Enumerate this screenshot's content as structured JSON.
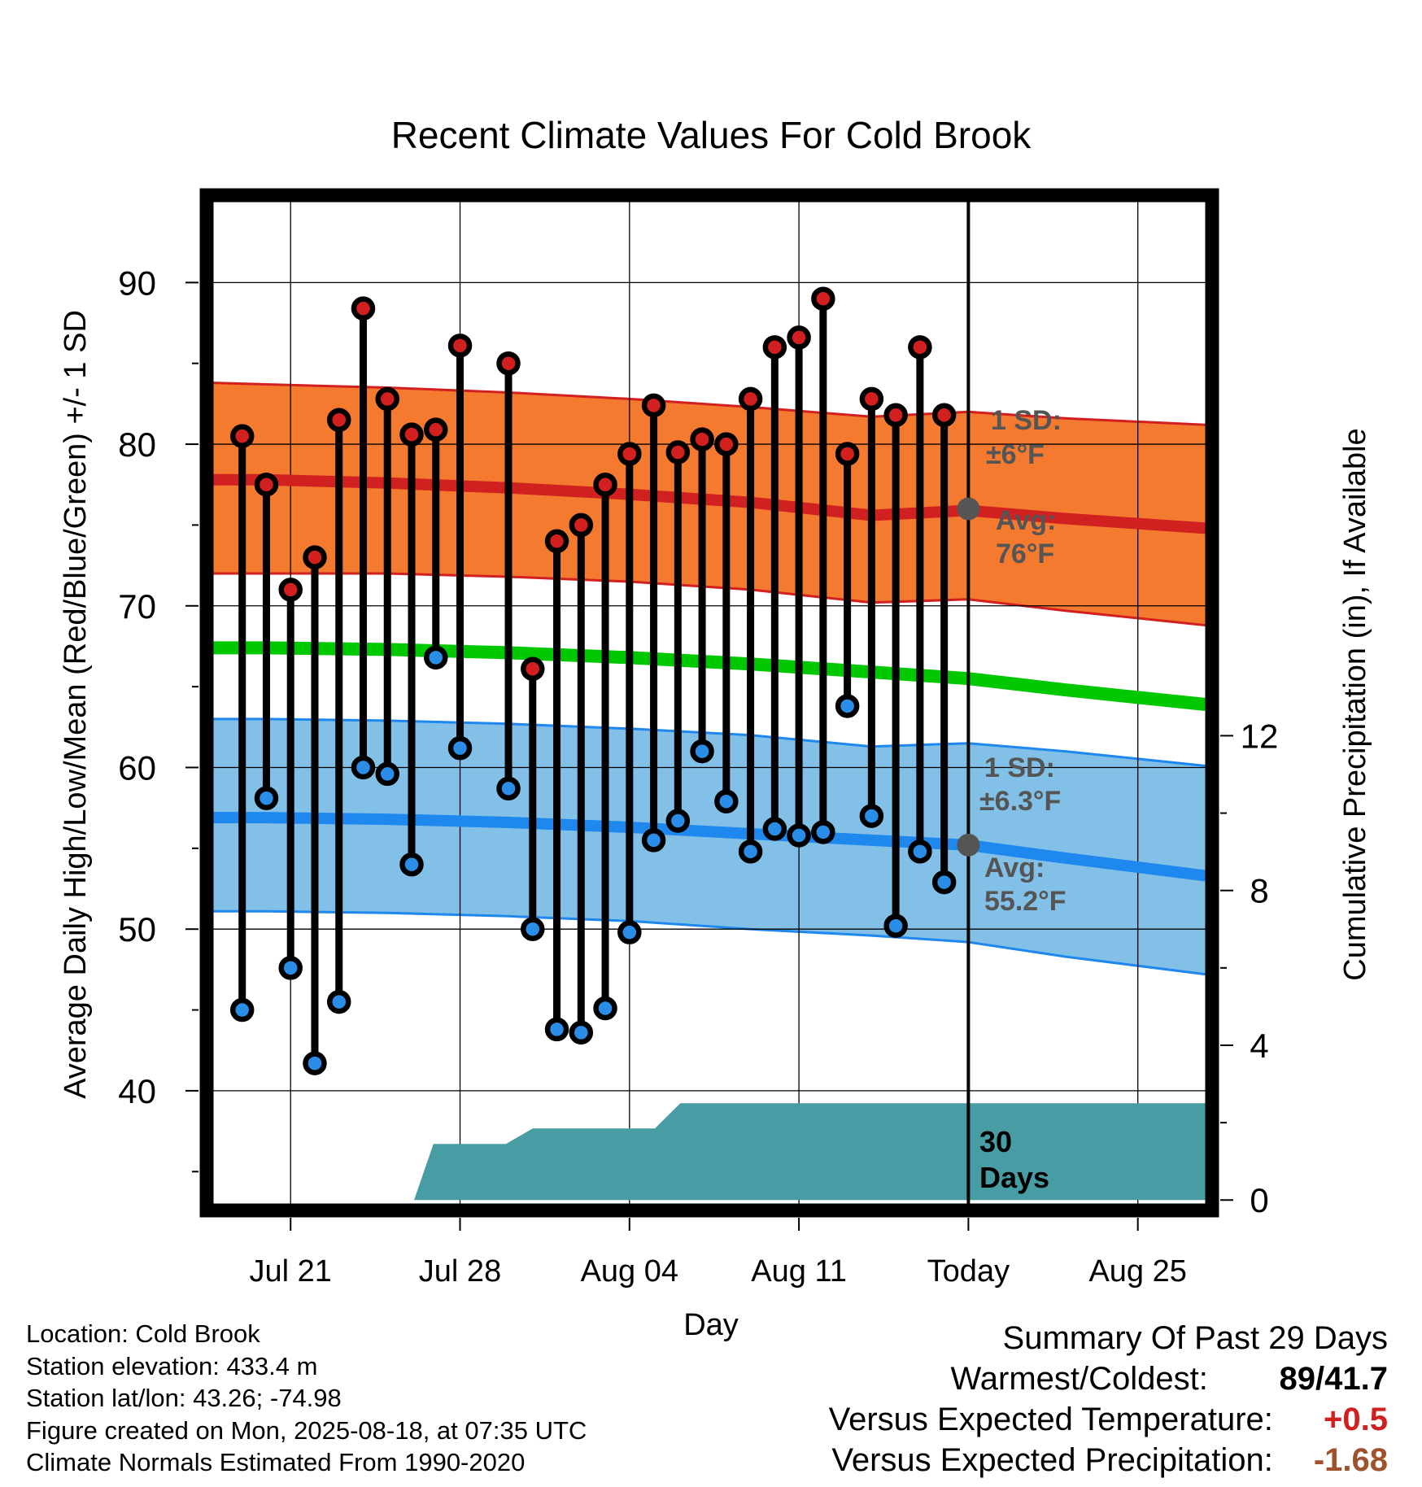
{
  "title": "Recent Climate Values For Cold Brook",
  "colors": {
    "high_band": "#f47a30",
    "high_band_edge": "#d21f20",
    "high_avg": "#d02020",
    "low_band": "#83c0e8",
    "low_band_edge": "#1e88ee",
    "low_avg": "#1e88ee",
    "mean_line": "#00c800",
    "precip_fill": "#489ca4",
    "high_marker": "#d21f20",
    "low_marker": "#2a8ee8",
    "annotation": "#555555",
    "summary_temp": "#d02020",
    "summary_precip": "#a0522d"
  },
  "chart_data": {
    "type": "line",
    "title": "Recent Climate Values For Cold Brook",
    "xlabel": "Day",
    "ylabel": "Average Daily High/Low/Mean (Red/Blue/Green) +/- 1 SD",
    "y2label": "Cumulative Precipitation (in), If Available",
    "x_tick_labels": [
      "Jul 21",
      "Jul 28",
      "Aug 04",
      "Aug 11",
      "Today",
      "Aug 25"
    ],
    "x_tick_days": [
      21,
      28,
      35,
      42,
      49,
      56
    ],
    "x_range": [
      17.8,
      58.8
    ],
    "ylim": [
      33,
      95
    ],
    "yticks": [
      40,
      50,
      60,
      70,
      80,
      90
    ],
    "y2lim": [
      -0.1,
      25.8
    ],
    "y2ticks": [
      0,
      4,
      8,
      12
    ],
    "today_day": 49,
    "days": [
      19,
      20,
      21,
      22,
      23,
      24,
      25,
      26,
      27,
      28,
      29,
      30,
      31,
      32,
      33,
      34,
      35,
      36,
      37,
      38,
      39,
      40,
      41,
      42,
      43,
      44,
      45,
      46,
      47,
      48
    ],
    "observed_high": [
      80.5,
      77.5,
      71,
      73,
      81.5,
      88.4,
      82.8,
      80.6,
      80.9,
      86.1,
      null,
      85,
      66.1,
      74,
      75,
      77.5,
      79.4,
      82.4,
      79.5,
      80.3,
      80,
      82.8,
      86,
      86.6,
      89,
      79.4,
      82.8,
      81.8,
      86,
      81.8
    ],
    "observed_low": [
      45,
      58.1,
      47.6,
      41.7,
      45.5,
      60,
      59.6,
      54,
      66.8,
      61.2,
      null,
      58.7,
      50,
      43.8,
      43.6,
      45.1,
      49.8,
      55.5,
      56.7,
      61,
      57.9,
      54.8,
      56.2,
      55.8,
      56,
      63.8,
      57,
      50.2,
      54.8,
      52.9
    ],
    "normal_days": [
      17.8,
      20,
      25,
      30,
      35,
      40,
      45,
      49,
      53,
      58.8
    ],
    "normal_high_avg": [
      77.8,
      77.8,
      77.6,
      77.3,
      76.9,
      76.4,
      75.6,
      75.9,
      75.4,
      74.8
    ],
    "normal_high_upper": [
      83.8,
      83.7,
      83.5,
      83.2,
      82.8,
      82.3,
      81.7,
      82,
      81.6,
      81.2
    ],
    "normal_high_lower": [
      72,
      72,
      72,
      71.8,
      71.5,
      71,
      70.2,
      70.4,
      69.7,
      68.8
    ],
    "normal_mean": [
      67.4,
      67.4,
      67.3,
      67.1,
      66.8,
      66.4,
      65.9,
      65.5,
      64.8,
      63.9
    ],
    "normal_low_avg": [
      56.9,
      56.9,
      56.8,
      56.6,
      56.3,
      55.9,
      55.5,
      55.2,
      54.4,
      53.3
    ],
    "normal_low_upper": [
      63,
      63,
      62.9,
      62.7,
      62.4,
      62,
      61.3,
      61.5,
      61,
      60.1
    ],
    "normal_low_lower": [
      51.1,
      51.1,
      51,
      50.8,
      50.5,
      50,
      49.6,
      49.2,
      48.3,
      47.2
    ],
    "precip_days": [
      26.1,
      26.9,
      29.9,
      31,
      36.05,
      37.1,
      58.8
    ],
    "precip_cumulative": [
      0,
      1.45,
      1.45,
      1.85,
      1.85,
      2.5,
      2.5
    ],
    "annotations": {
      "high_sd_label": "1 SD:",
      "high_sd_value": "±6°F",
      "high_avg_label": "Avg:",
      "high_avg_value": "76°F",
      "high_today_avg": 76,
      "low_sd_label": "1 SD:",
      "low_sd_value": "±6.3°F",
      "low_avg_label": "Avg:",
      "low_avg_value": "55.2°F",
      "low_today_avg": 55.2,
      "window_label_1": "30",
      "window_label_2": "Days"
    }
  },
  "footer": {
    "location": "Location: Cold Brook",
    "elevation": "Station elevation: 433.4 m",
    "latlon": "Station lat/lon: 43.26; -74.98",
    "created": "Figure created on Mon, 2025-08-18, at 07:35 UTC",
    "normals": "Climate Normals Estimated From 1990-2020"
  },
  "summary": {
    "heading": "Summary Of Past 29 Days",
    "warm_cold_label": "Warmest/Coldest:",
    "warmest": "89",
    "slash": "/",
    "coldest": "41.7",
    "temp_label": "Versus Expected Temperature:",
    "temp_value": "+0.5",
    "precip_label": "Versus Expected Precipitation:",
    "precip_value": "-1.68"
  }
}
